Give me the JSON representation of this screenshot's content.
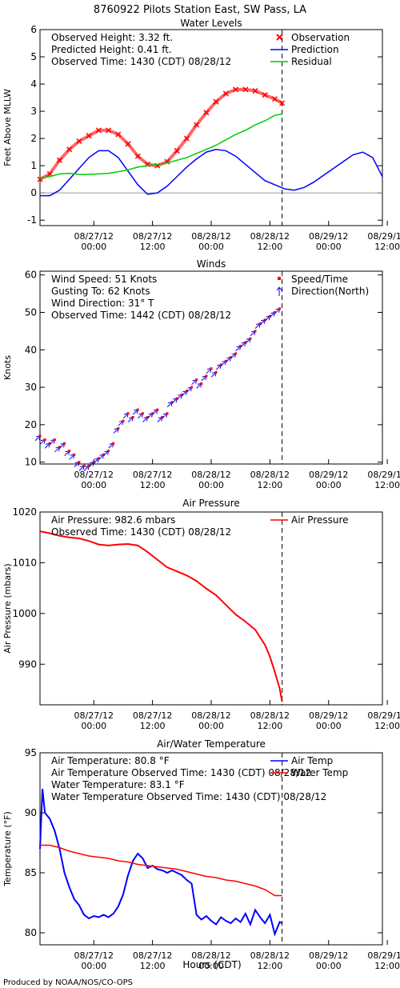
{
  "page_title": "8760922 Pilots Station East, SW Pass, LA",
  "footer": "Produced by NOAA/NOS/CO-OPS",
  "x_axis_title": "Hours (CDT)",
  "x_ticks": [
    {
      "d": "08/27/12",
      "t": "00:00"
    },
    {
      "d": "08/27/12",
      "t": "12:00"
    },
    {
      "d": "08/28/12",
      "t": "00:00"
    },
    {
      "d": "08/28/12",
      "t": "12:00"
    },
    {
      "d": "08/29/12",
      "t": "00:00"
    },
    {
      "d": "08/29/12",
      "t": "12:00"
    }
  ],
  "chart_data": [
    {
      "type": "line",
      "title": "Water Levels",
      "ylabel": "Feet Above MLLW",
      "ylim": [
        -1.2,
        6
      ],
      "yticks": [
        -1,
        0,
        1,
        2,
        3,
        4,
        5,
        6
      ],
      "x_units": "hours from 08/27/12 00:00 CDT",
      "xlim": [
        -11,
        59
      ],
      "observed_time_hour": 38.5,
      "info": [
        "Observed Height:    3.32 ft.",
        "Predicted Height:    0.41 ft.",
        "Observed Time: 1430 (CDT) 08/28/12"
      ],
      "legend": [
        {
          "label": "Observation",
          "symbol": "x",
          "color": "#ff0000"
        },
        {
          "label": "Prediction",
          "symbol": "line",
          "color": "#0000ff"
        },
        {
          "label": "Residual",
          "symbol": "line",
          "color": "#00cc00"
        }
      ],
      "series": [
        {
          "name": "Observation",
          "color": "#ff0000",
          "x": [
            -11,
            -9,
            -7,
            -5,
            -3,
            -1,
            1,
            3,
            5,
            7,
            9,
            11,
            13,
            15,
            17,
            19,
            21,
            23,
            25,
            27,
            29,
            31,
            33,
            35,
            37,
            38.5
          ],
          "y": [
            0.5,
            0.7,
            1.2,
            1.6,
            1.9,
            2.1,
            2.3,
            2.3,
            2.15,
            1.8,
            1.35,
            1.05,
            1.0,
            1.15,
            1.55,
            2.0,
            2.5,
            2.95,
            3.35,
            3.65,
            3.8,
            3.8,
            3.75,
            3.6,
            3.45,
            3.3
          ]
        },
        {
          "name": "Prediction",
          "color": "#0000ff",
          "x": [
            -11,
            -9,
            -7,
            -5,
            -3,
            -1,
            1,
            3,
            5,
            7,
            9,
            11,
            13,
            15,
            17,
            19,
            21,
            23,
            25,
            27,
            29,
            31,
            33,
            35,
            37,
            39,
            41,
            43,
            45,
            47,
            49,
            51,
            53,
            55,
            57,
            59
          ],
          "y": [
            -0.1,
            -0.1,
            0.1,
            0.5,
            0.9,
            1.3,
            1.55,
            1.55,
            1.3,
            0.8,
            0.3,
            -0.05,
            0.0,
            0.25,
            0.6,
            0.95,
            1.25,
            1.5,
            1.6,
            1.55,
            1.35,
            1.05,
            0.75,
            0.45,
            0.3,
            0.15,
            0.1,
            0.2,
            0.4,
            0.65,
            0.9,
            1.15,
            1.4,
            1.5,
            1.3,
            0.6
          ]
        },
        {
          "name": "Residual",
          "color": "#00cc00",
          "x": [
            -11,
            -9,
            -7,
            -5,
            -3,
            -1,
            1,
            3,
            5,
            7,
            9,
            11,
            13,
            15,
            17,
            19,
            21,
            23,
            25,
            27,
            29,
            31,
            33,
            35,
            37,
            38.5
          ],
          "y": [
            0.55,
            0.6,
            0.7,
            0.72,
            0.68,
            0.68,
            0.7,
            0.72,
            0.78,
            0.85,
            0.95,
            1.0,
            1.05,
            1.1,
            1.2,
            1.3,
            1.45,
            1.6,
            1.75,
            1.95,
            2.15,
            2.3,
            2.5,
            2.65,
            2.85,
            2.9
          ]
        }
      ]
    },
    {
      "type": "scatter",
      "title": "Winds",
      "ylabel": "Knots",
      "ylim": [
        9.5,
        61
      ],
      "yticks": [
        10,
        20,
        30,
        40,
        50,
        60
      ],
      "x_units": "hours from 08/27/12 00:00 CDT",
      "xlim": [
        -11,
        59
      ],
      "observed_time_hour": 38.5,
      "info": [
        "Wind Speed: 51 Knots",
        "Gusting To: 62 Knots",
        "Wind Direction:   31° T",
        "Observed Time: 1442 (CDT) 08/28/12"
      ],
      "legend": [
        {
          "label": "Speed/Time",
          "symbol": "dot",
          "color": "#ff0000"
        },
        {
          "label": "Direction(North)",
          "symbol": "arrow",
          "color": "#0000ff"
        }
      ],
      "series": [
        {
          "name": "Speed/Time",
          "color": "#0000ff",
          "x": [
            -11,
            -10,
            -9,
            -8,
            -7,
            -6,
            -5,
            -4,
            -3,
            -2,
            -1,
            0,
            1,
            2,
            3,
            4,
            5,
            6,
            7,
            8,
            9,
            10,
            11,
            12,
            13,
            14,
            15,
            16,
            17,
            18,
            19,
            20,
            21,
            22,
            23,
            24,
            25,
            26,
            27,
            28,
            29,
            30,
            31,
            32,
            33,
            34,
            35,
            36,
            37,
            38
          ],
          "y": [
            17,
            16,
            15,
            16,
            14,
            15,
            13,
            12,
            10,
            9,
            9,
            10,
            11,
            12,
            13,
            15,
            19,
            21,
            23,
            22,
            24,
            23,
            22,
            23,
            24,
            22,
            23,
            26,
            27,
            28,
            29,
            30,
            32,
            31,
            33,
            35,
            34,
            36,
            37,
            38,
            39,
            41,
            42,
            43,
            45,
            47,
            48,
            49,
            50,
            51
          ]
        }
      ]
    },
    {
      "type": "line",
      "title": "Air Pressure",
      "ylabel": "Air Pressure (mbars)",
      "ylim": [
        982,
        1020
      ],
      "yticks": [
        990,
        1000,
        1010,
        1020
      ],
      "x_units": "hours from 08/27/12 00:00 CDT",
      "xlim": [
        -11,
        59
      ],
      "observed_time_hour": 38.5,
      "info": [
        "Air Pressure:  982.6 mbars",
        "Observed Time: 1430 (CDT) 08/28/12"
      ],
      "legend": [
        {
          "label": "Air Pressure",
          "symbol": "line",
          "color": "#ff0000"
        }
      ],
      "series": [
        {
          "name": "Air Pressure",
          "color": "#ff0000",
          "x": [
            -11,
            -9,
            -7,
            -5,
            -3,
            -1,
            1,
            3,
            5,
            7,
            9,
            11,
            13,
            15,
            17,
            19,
            21,
            23,
            25,
            27,
            29,
            31,
            33,
            35,
            36,
            37,
            38,
            38.5
          ],
          "y": [
            1016.2,
            1015.8,
            1015.3,
            1015,
            1014.8,
            1014.3,
            1013.6,
            1013.4,
            1013.6,
            1013.7,
            1013.4,
            1012.1,
            1010.6,
            1009.1,
            1008.3,
            1007.5,
            1006.4,
            1004.9,
            1003.6,
            1001.7,
            999.8,
            998.4,
            996.8,
            993.8,
            991.5,
            988.5,
            985.2,
            982.6
          ]
        }
      ]
    },
    {
      "type": "line",
      "title": "Air/Water Temperature",
      "ylabel": "Temperature (°F)",
      "ylim": [
        79,
        95
      ],
      "yticks": [
        80,
        85,
        90,
        95
      ],
      "x_units": "hours from 08/27/12 00:00 CDT",
      "xlim": [
        -11,
        59
      ],
      "observed_time_hour": 38.5,
      "info": [
        "Air Temperature:  80.8 °F",
        "Air Temperature Observed Time: 1430 (CDT) 08/28/12",
        "Water Temperature:  83.1 °F",
        "Water Temperature Observed Time: 1430 (CDT) 08/28/12"
      ],
      "legend": [
        {
          "label": "Air Temp",
          "symbol": "line",
          "color": "#0000ff"
        },
        {
          "label": "Water Temp",
          "symbol": "line",
          "color": "#ff0000"
        }
      ],
      "series": [
        {
          "name": "Air Temp",
          "color": "#0000ff",
          "x": [
            -11,
            -10.5,
            -10,
            -9,
            -8,
            -7,
            -6,
            -5,
            -4,
            -3,
            -2,
            -1,
            0,
            1,
            2,
            3,
            4,
            5,
            6,
            7,
            8,
            9,
            10,
            11,
            12,
            13,
            14,
            15,
            16,
            17,
            18,
            19,
            20,
            21,
            22,
            23,
            24,
            25,
            26,
            27,
            28,
            29,
            30,
            31,
            32,
            33,
            34,
            35,
            36,
            37,
            38,
            38.5
          ],
          "y": [
            87,
            92,
            90,
            89.5,
            88.5,
            87,
            85,
            83.8,
            82.8,
            82.3,
            81.5,
            81.2,
            81.4,
            81.3,
            81.5,
            81.3,
            81.6,
            82.2,
            83.2,
            84.8,
            86,
            86.6,
            86.2,
            85.4,
            85.6,
            85.3,
            85.2,
            85,
            85.2,
            85,
            84.8,
            84.4,
            84.1,
            81.5,
            81.1,
            81.4,
            81.0,
            80.7,
            81.3,
            81.0,
            80.8,
            81.2,
            80.9,
            81.6,
            80.7,
            81.9,
            81.3,
            80.8,
            81.5,
            79.9,
            80.9,
            80.8
          ]
        },
        {
          "name": "Water Temp",
          "color": "#ff0000",
          "x": [
            -11,
            -9,
            -7,
            -5,
            -3,
            -1,
            1,
            3,
            5,
            7,
            9,
            11,
            13,
            15,
            17,
            19,
            21,
            23,
            25,
            27,
            29,
            31,
            33,
            35,
            37,
            38.5
          ],
          "y": [
            87.3,
            87.3,
            87.1,
            86.8,
            86.6,
            86.4,
            86.3,
            86.2,
            86.0,
            85.9,
            85.7,
            85.6,
            85.5,
            85.4,
            85.3,
            85.1,
            84.9,
            84.7,
            84.6,
            84.4,
            84.3,
            84.1,
            83.9,
            83.6,
            83.1,
            83.1
          ]
        }
      ]
    }
  ]
}
